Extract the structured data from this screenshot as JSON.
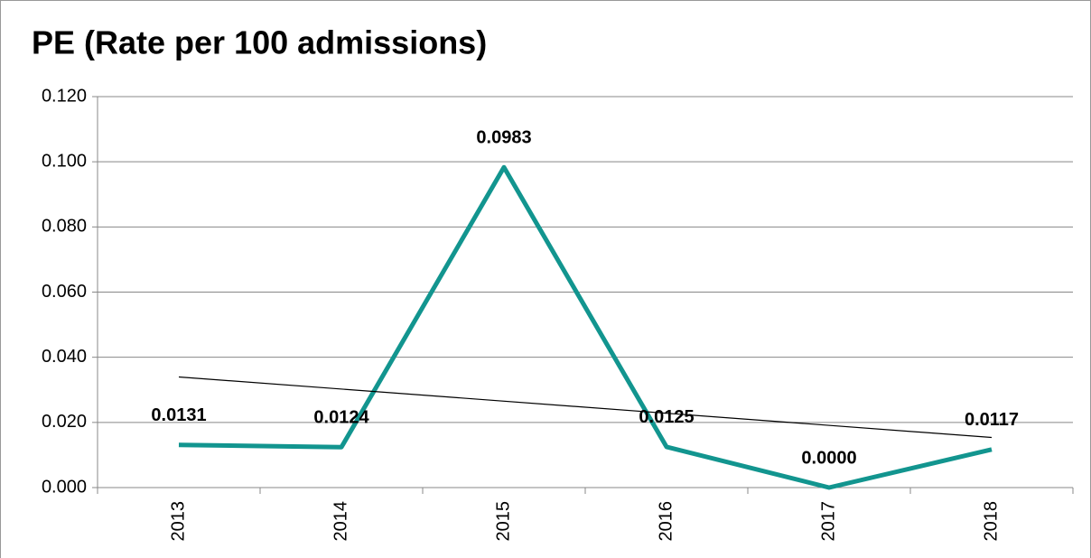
{
  "chart_data": {
    "type": "line",
    "title": "PE (Rate per 100 admissions)",
    "categories": [
      "2013",
      "2014",
      "2015",
      "2016",
      "2017",
      "2018"
    ],
    "values": [
      0.0131,
      0.0124,
      0.0983,
      0.0125,
      0,
      0.0117
    ],
    "value_labels": [
      "0.0131",
      "0.0124",
      "0.0983",
      "0.0125",
      "0.0000",
      "0.0117"
    ],
    "color": "#12958f",
    "trendline": "linear",
    "ylim": [
      0,
      0.12
    ],
    "yticks": [
      {
        "value": 0,
        "label": "0.000"
      },
      {
        "value": 0.02,
        "label": "0.020"
      },
      {
        "value": 0.04,
        "label": "0.040"
      },
      {
        "value": 0.06,
        "label": "0.060"
      },
      {
        "value": 0.08,
        "label": "0.080"
      },
      {
        "value": 0.1,
        "label": "0.100"
      },
      {
        "value": 0.12,
        "label": "0.120"
      }
    ],
    "grid": true
  }
}
